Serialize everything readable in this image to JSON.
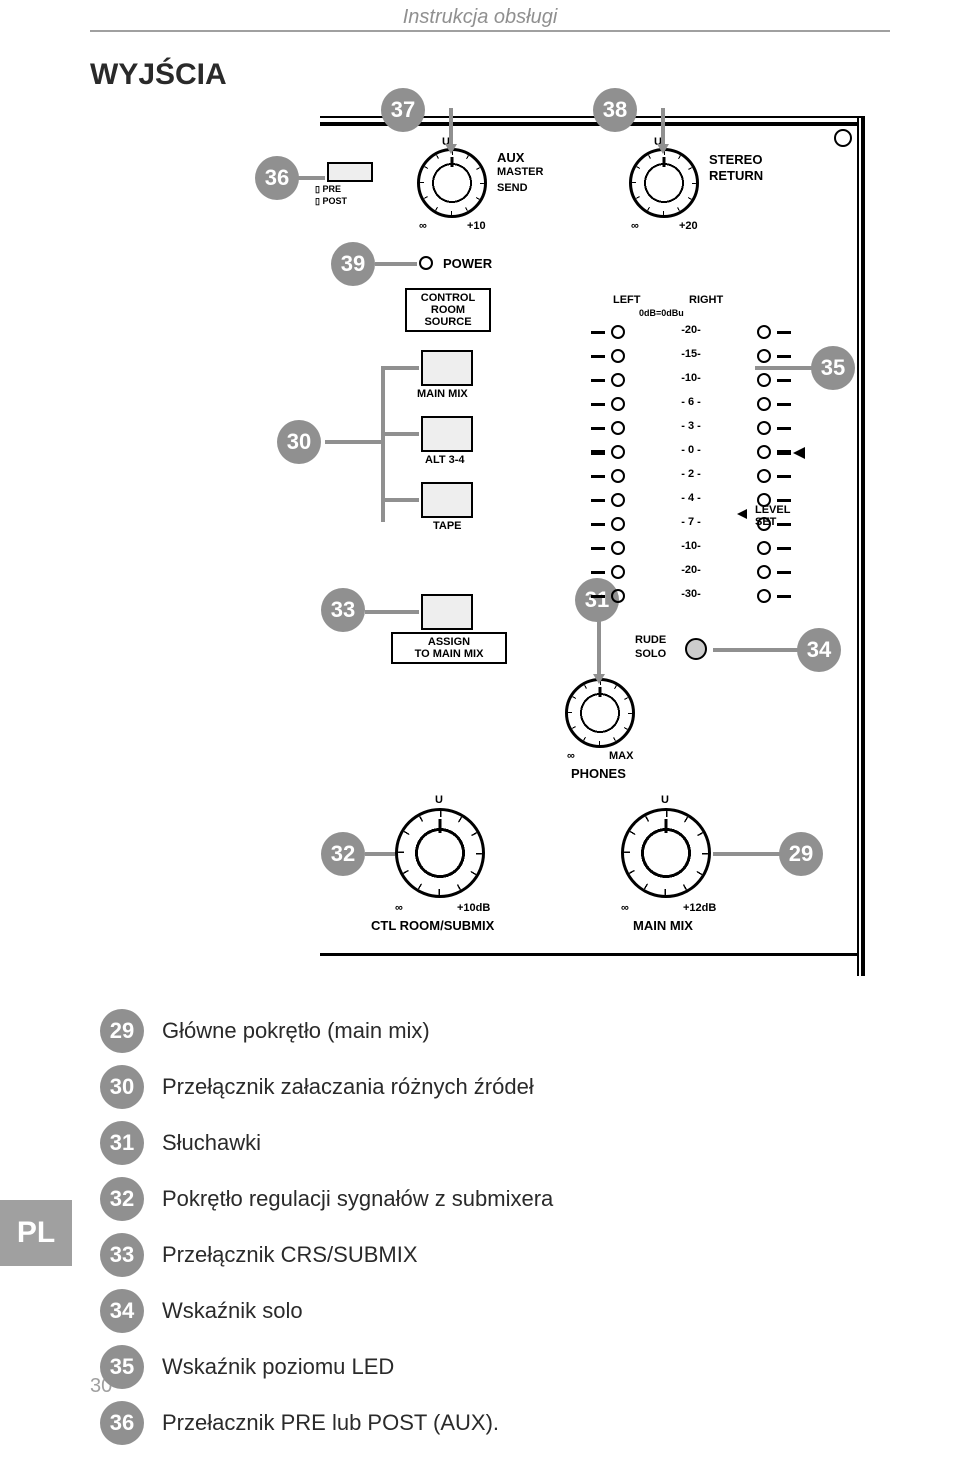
{
  "header_title": "Instrukcja obsługi",
  "section_title": "WYJŚCIA",
  "sidebar_lang": "PL",
  "page_number": "30",
  "diagram": {
    "knob_aux": {
      "label_top": "U",
      "label1": "AUX",
      "label2": "MASTER",
      "label3": "SEND",
      "scale_l": "∞",
      "scale_r": "+10"
    },
    "knob_stereo": {
      "label_top": "U",
      "label1": "STEREO",
      "label2": "RETURN",
      "scale_l": "∞",
      "scale_r": "+20"
    },
    "pre_post": {
      "up": "▯ PRE",
      "down": "▯ POST"
    },
    "power": "POWER",
    "crs_box": {
      "l1": "CONTROL",
      "l2": "ROOM",
      "l3": "SOURCE"
    },
    "crs_buttons": [
      "MAIN MIX",
      "ALT 3-4",
      "TAPE"
    ],
    "assign_box": {
      "l1": "ASSIGN",
      "l2": "TO MAIN MIX"
    },
    "meter_header": {
      "left": "LEFT",
      "right": "RIGHT",
      "ref": "0dB=0dBu"
    },
    "meter_levels": [
      "-20-",
      "-15-",
      "-10-",
      "- 6 -",
      "- 3 -",
      "- 0 -",
      "- 2 -",
      "- 4 -",
      "- 7 -",
      "-10-",
      "-20-",
      "-30-"
    ],
    "level_set": "LEVEL\nSET",
    "rude_solo": {
      "l1": "RUDE",
      "l2": "SOLO"
    },
    "phones": {
      "scale_l": "∞",
      "scale_r": "MAX",
      "label": "PHONES"
    },
    "ctlroom": {
      "label_top": "U",
      "scale_l": "∞",
      "scale_r": "+10dB",
      "label": "CTL ROOM/SUBMIX"
    },
    "mainmix": {
      "label_top": "U",
      "scale_l": "∞",
      "scale_r": "+12dB",
      "label": "MAIN MIX"
    }
  },
  "legend": [
    {
      "num": "29",
      "text": "Główne pokrętło (main mix)"
    },
    {
      "num": "30",
      "text": "Przełącznik załaczania różnych źródeł"
    },
    {
      "num": "31",
      "text": "Słuchawki"
    },
    {
      "num": "32",
      "text": "Pokrętło regulacji sygnałów z submixera"
    },
    {
      "num": "33",
      "text": "Przełącznik CRS/SUBMIX"
    },
    {
      "num": "34",
      "text": "Wskaźnik solo"
    },
    {
      "num": "35",
      "text": "Wskaźnik poziomu LED"
    },
    {
      "num": "36",
      "text": "Przełacznik PRE lub POST (AUX)."
    }
  ],
  "callouts": {
    "c36": "36",
    "c37": "37",
    "c38": "38",
    "c39": "39",
    "c30": "30",
    "c35": "35",
    "c33": "33",
    "c31": "31",
    "c34": "34",
    "c32": "32",
    "c29": "29"
  }
}
